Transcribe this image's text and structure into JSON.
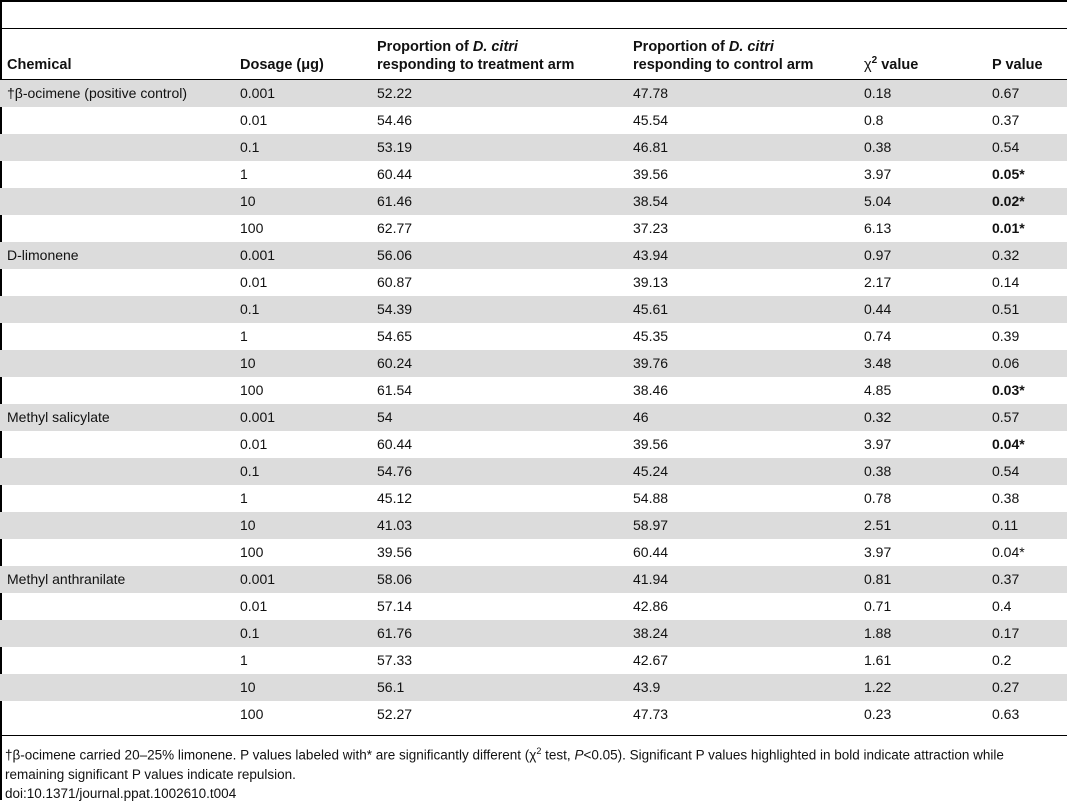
{
  "header": {
    "chemical": "Chemical",
    "dosage": "Dosage (μg)",
    "treatment_pre": "Proportion of ",
    "treatment_species": "D. citri",
    "treatment_post": "responding to treatment arm",
    "control_pre": "Proportion of ",
    "control_species": "D. citri",
    "control_post": "responding to control arm",
    "chi_symbol": "χ",
    "chi_sup": "2",
    "chi_suffix": " value",
    "p": "P value"
  },
  "rows": [
    {
      "chemical": "†β-ocimene (positive control)",
      "dosage": "0.001",
      "treatment": "52.22",
      "control": "47.78",
      "chi": "0.18",
      "p": "0.67",
      "p_bold": false,
      "p_star": ""
    },
    {
      "chemical": "",
      "dosage": "0.01",
      "treatment": "54.46",
      "control": "45.54",
      "chi": "0.8",
      "p": "0.37",
      "p_bold": false,
      "p_star": ""
    },
    {
      "chemical": "",
      "dosage": "0.1",
      "treatment": "53.19",
      "control": "46.81",
      "chi": "0.38",
      "p": "0.54",
      "p_bold": false,
      "p_star": ""
    },
    {
      "chemical": "",
      "dosage": "1",
      "treatment": "60.44",
      "control": "39.56",
      "chi": "3.97",
      "p": "0.05",
      "p_bold": true,
      "p_star": "*"
    },
    {
      "chemical": "",
      "dosage": "10",
      "treatment": "61.46",
      "control": "38.54",
      "chi": "5.04",
      "p": "0.02",
      "p_bold": true,
      "p_star": "*"
    },
    {
      "chemical": "",
      "dosage": "100",
      "treatment": "62.77",
      "control": "37.23",
      "chi": "6.13",
      "p": "0.01",
      "p_bold": true,
      "p_star": "*"
    },
    {
      "chemical": "D-limonene",
      "dosage": "0.001",
      "treatment": "56.06",
      "control": "43.94",
      "chi": "0.97",
      "p": "0.32",
      "p_bold": false,
      "p_star": ""
    },
    {
      "chemical": "",
      "dosage": "0.01",
      "treatment": "60.87",
      "control": "39.13",
      "chi": "2.17",
      "p": "0.14",
      "p_bold": false,
      "p_star": ""
    },
    {
      "chemical": "",
      "dosage": "0.1",
      "treatment": "54.39",
      "control": "45.61",
      "chi": "0.44",
      "p": "0.51",
      "p_bold": false,
      "p_star": ""
    },
    {
      "chemical": "",
      "dosage": "1",
      "treatment": "54.65",
      "control": "45.35",
      "chi": "0.74",
      "p": "0.39",
      "p_bold": false,
      "p_star": ""
    },
    {
      "chemical": "",
      "dosage": "10",
      "treatment": "60.24",
      "control": "39.76",
      "chi": "3.48",
      "p": "0.06",
      "p_bold": false,
      "p_star": ""
    },
    {
      "chemical": "",
      "dosage": "100",
      "treatment": "61.54",
      "control": "38.46",
      "chi": "4.85",
      "p": "0.03",
      "p_bold": true,
      "p_star": "*"
    },
    {
      "chemical": "Methyl salicylate",
      "dosage": "0.001",
      "treatment": "54",
      "control": "46",
      "chi": "0.32",
      "p": "0.57",
      "p_bold": false,
      "p_star": ""
    },
    {
      "chemical": "",
      "dosage": "0.01",
      "treatment": "60.44",
      "control": "39.56",
      "chi": "3.97",
      "p": "0.04",
      "p_bold": true,
      "p_star": "*"
    },
    {
      "chemical": "",
      "dosage": "0.1",
      "treatment": "54.76",
      "control": "45.24",
      "chi": "0.38",
      "p": "0.54",
      "p_bold": false,
      "p_star": ""
    },
    {
      "chemical": "",
      "dosage": "1",
      "treatment": "45.12",
      "control": "54.88",
      "chi": "0.78",
      "p": "0.38",
      "p_bold": false,
      "p_star": ""
    },
    {
      "chemical": "",
      "dosage": "10",
      "treatment": "41.03",
      "control": "58.97",
      "chi": "2.51",
      "p": "0.11",
      "p_bold": false,
      "p_star": ""
    },
    {
      "chemical": "",
      "dosage": "100",
      "treatment": "39.56",
      "control": "60.44",
      "chi": "3.97",
      "p": "0.04",
      "p_bold": false,
      "p_star": "*"
    },
    {
      "chemical": "Methyl anthranilate",
      "dosage": "0.001",
      "treatment": "58.06",
      "control": "41.94",
      "chi": "0.81",
      "p": "0.37",
      "p_bold": false,
      "p_star": ""
    },
    {
      "chemical": "",
      "dosage": "0.01",
      "treatment": "57.14",
      "control": "42.86",
      "chi": "0.71",
      "p": "0.4",
      "p_bold": false,
      "p_star": ""
    },
    {
      "chemical": "",
      "dosage": "0.1",
      "treatment": "61.76",
      "control": "38.24",
      "chi": "1.88",
      "p": "0.17",
      "p_bold": false,
      "p_star": ""
    },
    {
      "chemical": "",
      "dosage": "1",
      "treatment": "57.33",
      "control": "42.67",
      "chi": "1.61",
      "p": "0.2",
      "p_bold": false,
      "p_star": ""
    },
    {
      "chemical": "",
      "dosage": "10",
      "treatment": "56.1",
      "control": "43.9",
      "chi": "1.22",
      "p": "0.27",
      "p_bold": false,
      "p_star": ""
    },
    {
      "chemical": "",
      "dosage": "100",
      "treatment": "52.27",
      "control": "47.73",
      "chi": "0.23",
      "p": "0.63",
      "p_bold": false,
      "p_star": ""
    }
  ],
  "footnote": {
    "part1": "†β-ocimene carried 20–25% limonene. P values labeled with* are significantly different (χ",
    "sup": "2",
    "part2": " test, ",
    "p_italic": "P",
    "part3": "<0.05). Significant P values highlighted in bold indicate attraction while remaining significant P values indicate repulsion.",
    "doi": "doi:10.1371/journal.ppat.1002610.t004"
  },
  "colors": {
    "shaded_row": "#dcdcdc",
    "rule": "#000000"
  }
}
